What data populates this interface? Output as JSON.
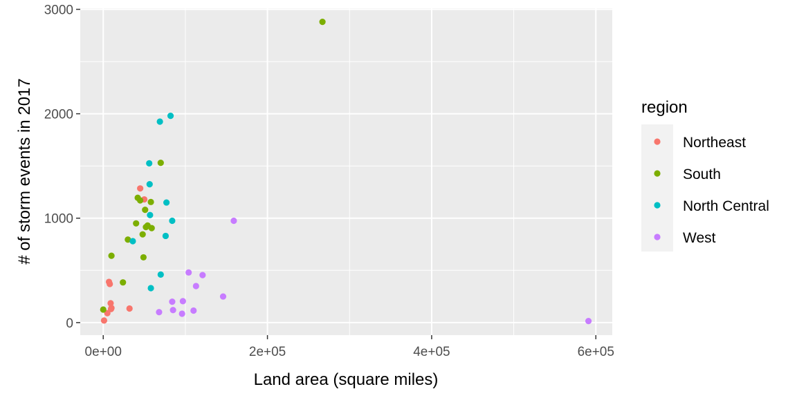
{
  "chart_data": {
    "type": "scatter",
    "xlabel": "Land area (square miles)",
    "ylabel": "# of storm events in 2017",
    "xlim": [
      -28000,
      620000
    ],
    "ylim": [
      -120,
      3010
    ],
    "x_ticks": [
      0,
      200000,
      400000,
      600000
    ],
    "x_tick_labels": [
      "0e+00",
      "2e+05",
      "4e+05",
      "6e+05"
    ],
    "y_ticks": [
      0,
      1000,
      2000,
      3000
    ],
    "y_tick_labels": [
      "0",
      "1000",
      "2000",
      "3000"
    ],
    "grid": true,
    "legend": {
      "title": "region",
      "position": "right"
    },
    "series": [
      {
        "name": "Northeast",
        "color": "#F8766D",
        "points": [
          [
            1000,
            20
          ],
          [
            5000,
            90
          ],
          [
            7000,
            390
          ],
          [
            8000,
            370
          ],
          [
            9000,
            185
          ],
          [
            9500,
            130
          ],
          [
            10000,
            140
          ],
          [
            32000,
            135
          ],
          [
            45000,
            1285
          ],
          [
            50000,
            1180
          ]
        ]
      },
      {
        "name": "South",
        "color": "#7CAE00",
        "points": [
          [
            0,
            125
          ],
          [
            10000,
            640
          ],
          [
            24000,
            385
          ],
          [
            30000,
            795
          ],
          [
            40000,
            950
          ],
          [
            42000,
            1195
          ],
          [
            45000,
            1170
          ],
          [
            48000,
            845
          ],
          [
            49000,
            625
          ],
          [
            51000,
            1080
          ],
          [
            52000,
            915
          ],
          [
            54000,
            930
          ],
          [
            58000,
            1155
          ],
          [
            59000,
            905
          ],
          [
            70000,
            1530
          ],
          [
            267000,
            2880
          ]
        ]
      },
      {
        "name": "North Central",
        "color": "#00BFC4",
        "points": [
          [
            36000,
            780
          ],
          [
            56000,
            1525
          ],
          [
            56500,
            1325
          ],
          [
            57000,
            1030
          ],
          [
            58000,
            330
          ],
          [
            69000,
            1925
          ],
          [
            70000,
            460
          ],
          [
            76000,
            830
          ],
          [
            77000,
            1150
          ],
          [
            82000,
            1980
          ],
          [
            84000,
            975
          ]
        ]
      },
      {
        "name": "West",
        "color": "#C77CFF",
        "points": [
          [
            68000,
            100
          ],
          [
            84000,
            200
          ],
          [
            85000,
            120
          ],
          [
            96000,
            85
          ],
          [
            97000,
            205
          ],
          [
            104000,
            480
          ],
          [
            110000,
            115
          ],
          [
            113000,
            350
          ],
          [
            121000,
            455
          ],
          [
            146000,
            250
          ],
          [
            159000,
            975
          ],
          [
            591000,
            15
          ]
        ]
      }
    ]
  }
}
